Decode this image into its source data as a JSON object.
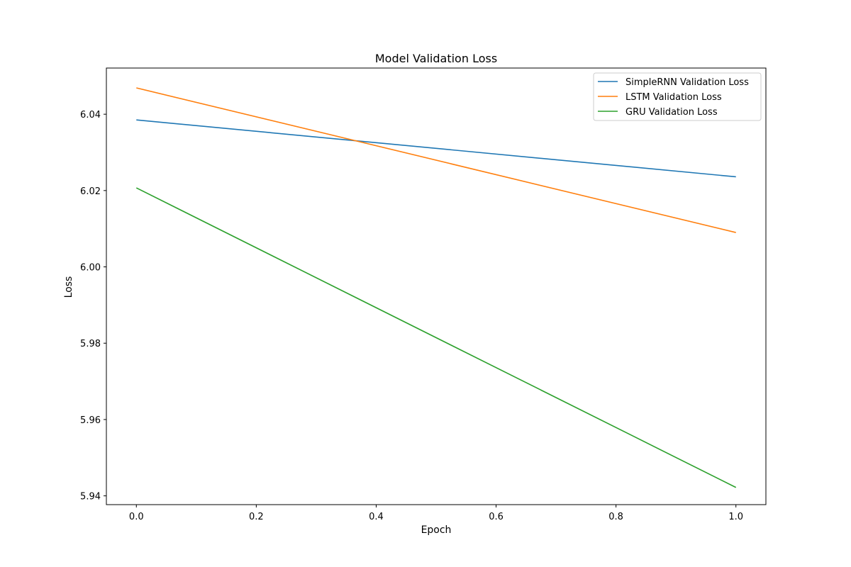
{
  "chart_data": {
    "type": "line",
    "title": "Model Validation Loss",
    "xlabel": "Epoch",
    "ylabel": "Loss",
    "xlim": [
      -0.05,
      1.05
    ],
    "ylim": [
      5.9377,
      6.0521
    ],
    "xticks": [
      0.0,
      0.2,
      0.4,
      0.6,
      0.8,
      1.0
    ],
    "xtick_labels": [
      "0.0",
      "0.2",
      "0.4",
      "0.6",
      "0.8",
      "1.0"
    ],
    "yticks": [
      5.94,
      5.96,
      5.98,
      6.0,
      6.02,
      6.04
    ],
    "ytick_labels": [
      "5.94",
      "5.96",
      "5.98",
      "6.00",
      "6.02",
      "6.04"
    ],
    "grid": false,
    "legend_position": "top-right",
    "series": [
      {
        "name": "SimpleRNN Validation Loss",
        "color": "#1f77b4",
        "x": [
          0,
          1
        ],
        "y": [
          6.0385,
          6.0236
        ]
      },
      {
        "name": "LSTM Validation Loss",
        "color": "#ff7f0e",
        "x": [
          0,
          1
        ],
        "y": [
          6.0469,
          6.009
        ]
      },
      {
        "name": "GRU Validation Loss",
        "color": "#2ca02c",
        "x": [
          0,
          1
        ],
        "y": [
          6.0207,
          5.9422
        ]
      }
    ]
  }
}
